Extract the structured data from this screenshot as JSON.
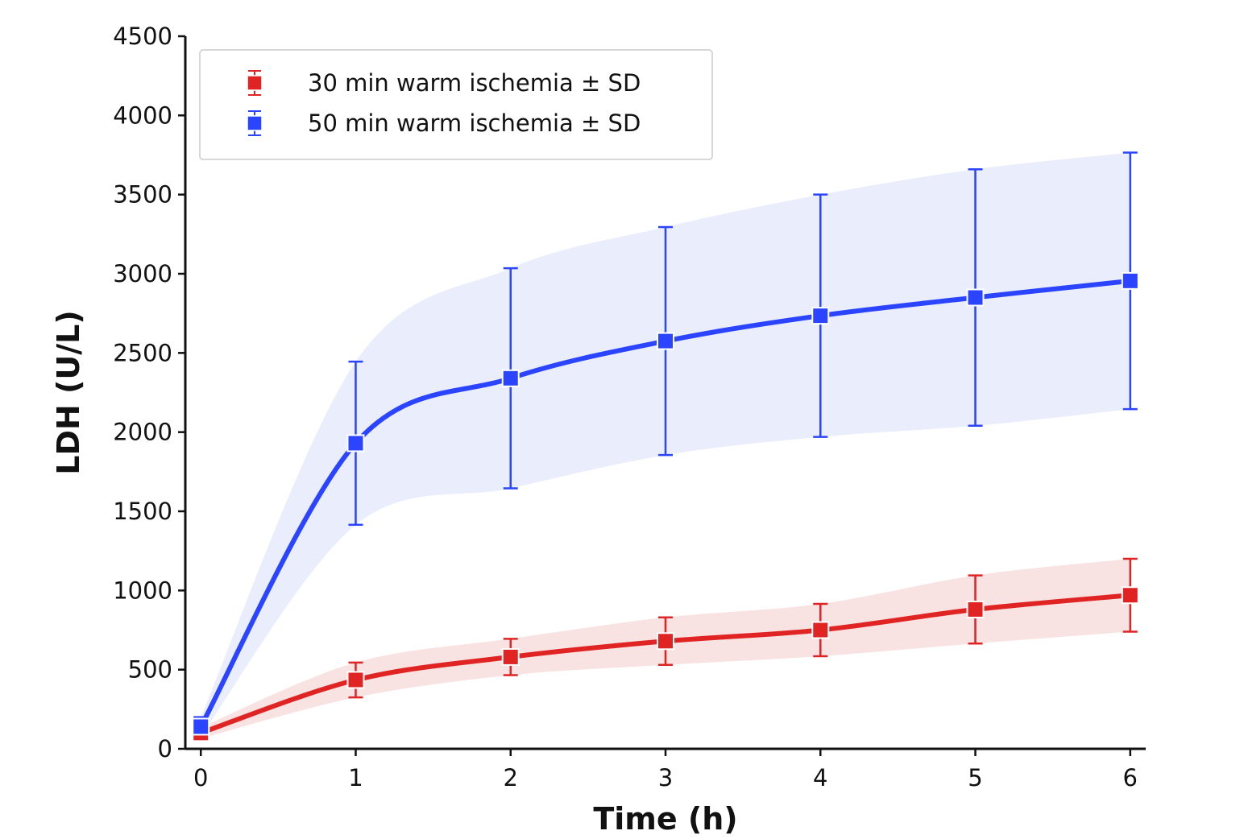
{
  "chart_data": {
    "type": "line",
    "xlabel": "Time (h)",
    "ylabel": "LDH (U/L)",
    "xlim": [
      -0.1,
      6.1
    ],
    "ylim": [
      0,
      4500
    ],
    "xticks": [
      0,
      1,
      2,
      3,
      4,
      5,
      6
    ],
    "yticks": [
      0,
      500,
      1000,
      1500,
      2000,
      2500,
      3000,
      3500,
      4000,
      4500
    ],
    "grid": false,
    "legend_position": "top-left",
    "series": [
      {
        "name": "30 min warm ischemia ± SD",
        "color": "#e02424",
        "band_color": "#f8e2e2",
        "x": [
          0,
          1,
          2,
          3,
          4,
          5,
          6
        ],
        "y": [
          100,
          435,
          580,
          680,
          750,
          880,
          970
        ],
        "sd": [
          35,
          110,
          115,
          150,
          165,
          215,
          230
        ]
      },
      {
        "name": "50 min warm ischemia ± SD",
        "color": "#2a44ff",
        "band_color": "#eaedfc",
        "x": [
          0,
          1,
          2,
          3,
          4,
          5,
          6
        ],
        "y": [
          140,
          1930,
          2340,
          2575,
          2735,
          2850,
          2955
        ],
        "sd": [
          60,
          515,
          695,
          720,
          765,
          810,
          810
        ]
      }
    ]
  }
}
